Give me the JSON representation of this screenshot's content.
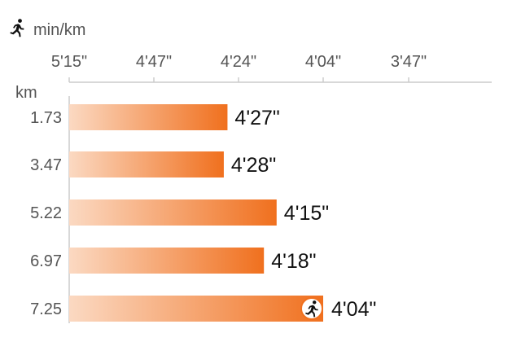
{
  "chart_data": {
    "type": "bar",
    "orientation": "horizontal",
    "unit_label": "min/km",
    "unit_icon": "running-person-icon",
    "category_axis_label": "km",
    "categories": [
      "1.73",
      "3.47",
      "5.22",
      "6.97",
      "7.25"
    ],
    "values": [
      "4'27\"",
      "4'28\"",
      "4'15\"",
      "4'18\"",
      "4'04\""
    ],
    "values_seconds": [
      267,
      268,
      255,
      258,
      244
    ],
    "x_ticks": [
      "5'15\"",
      "4'47\"",
      "4'24\"",
      "4'04\"",
      "3'47\""
    ],
    "x_ticks_seconds": [
      315,
      287,
      264,
      244,
      227
    ],
    "x_axis_reversed": true,
    "grid": false,
    "current_marker_index": 4,
    "current_marker_icon": "running-person-icon",
    "colors": {
      "bar_start": "#fbd9c2",
      "bar_end": "#f0701e",
      "axis": "#cccccc",
      "text": "#555555",
      "value_text": "#111111"
    }
  }
}
